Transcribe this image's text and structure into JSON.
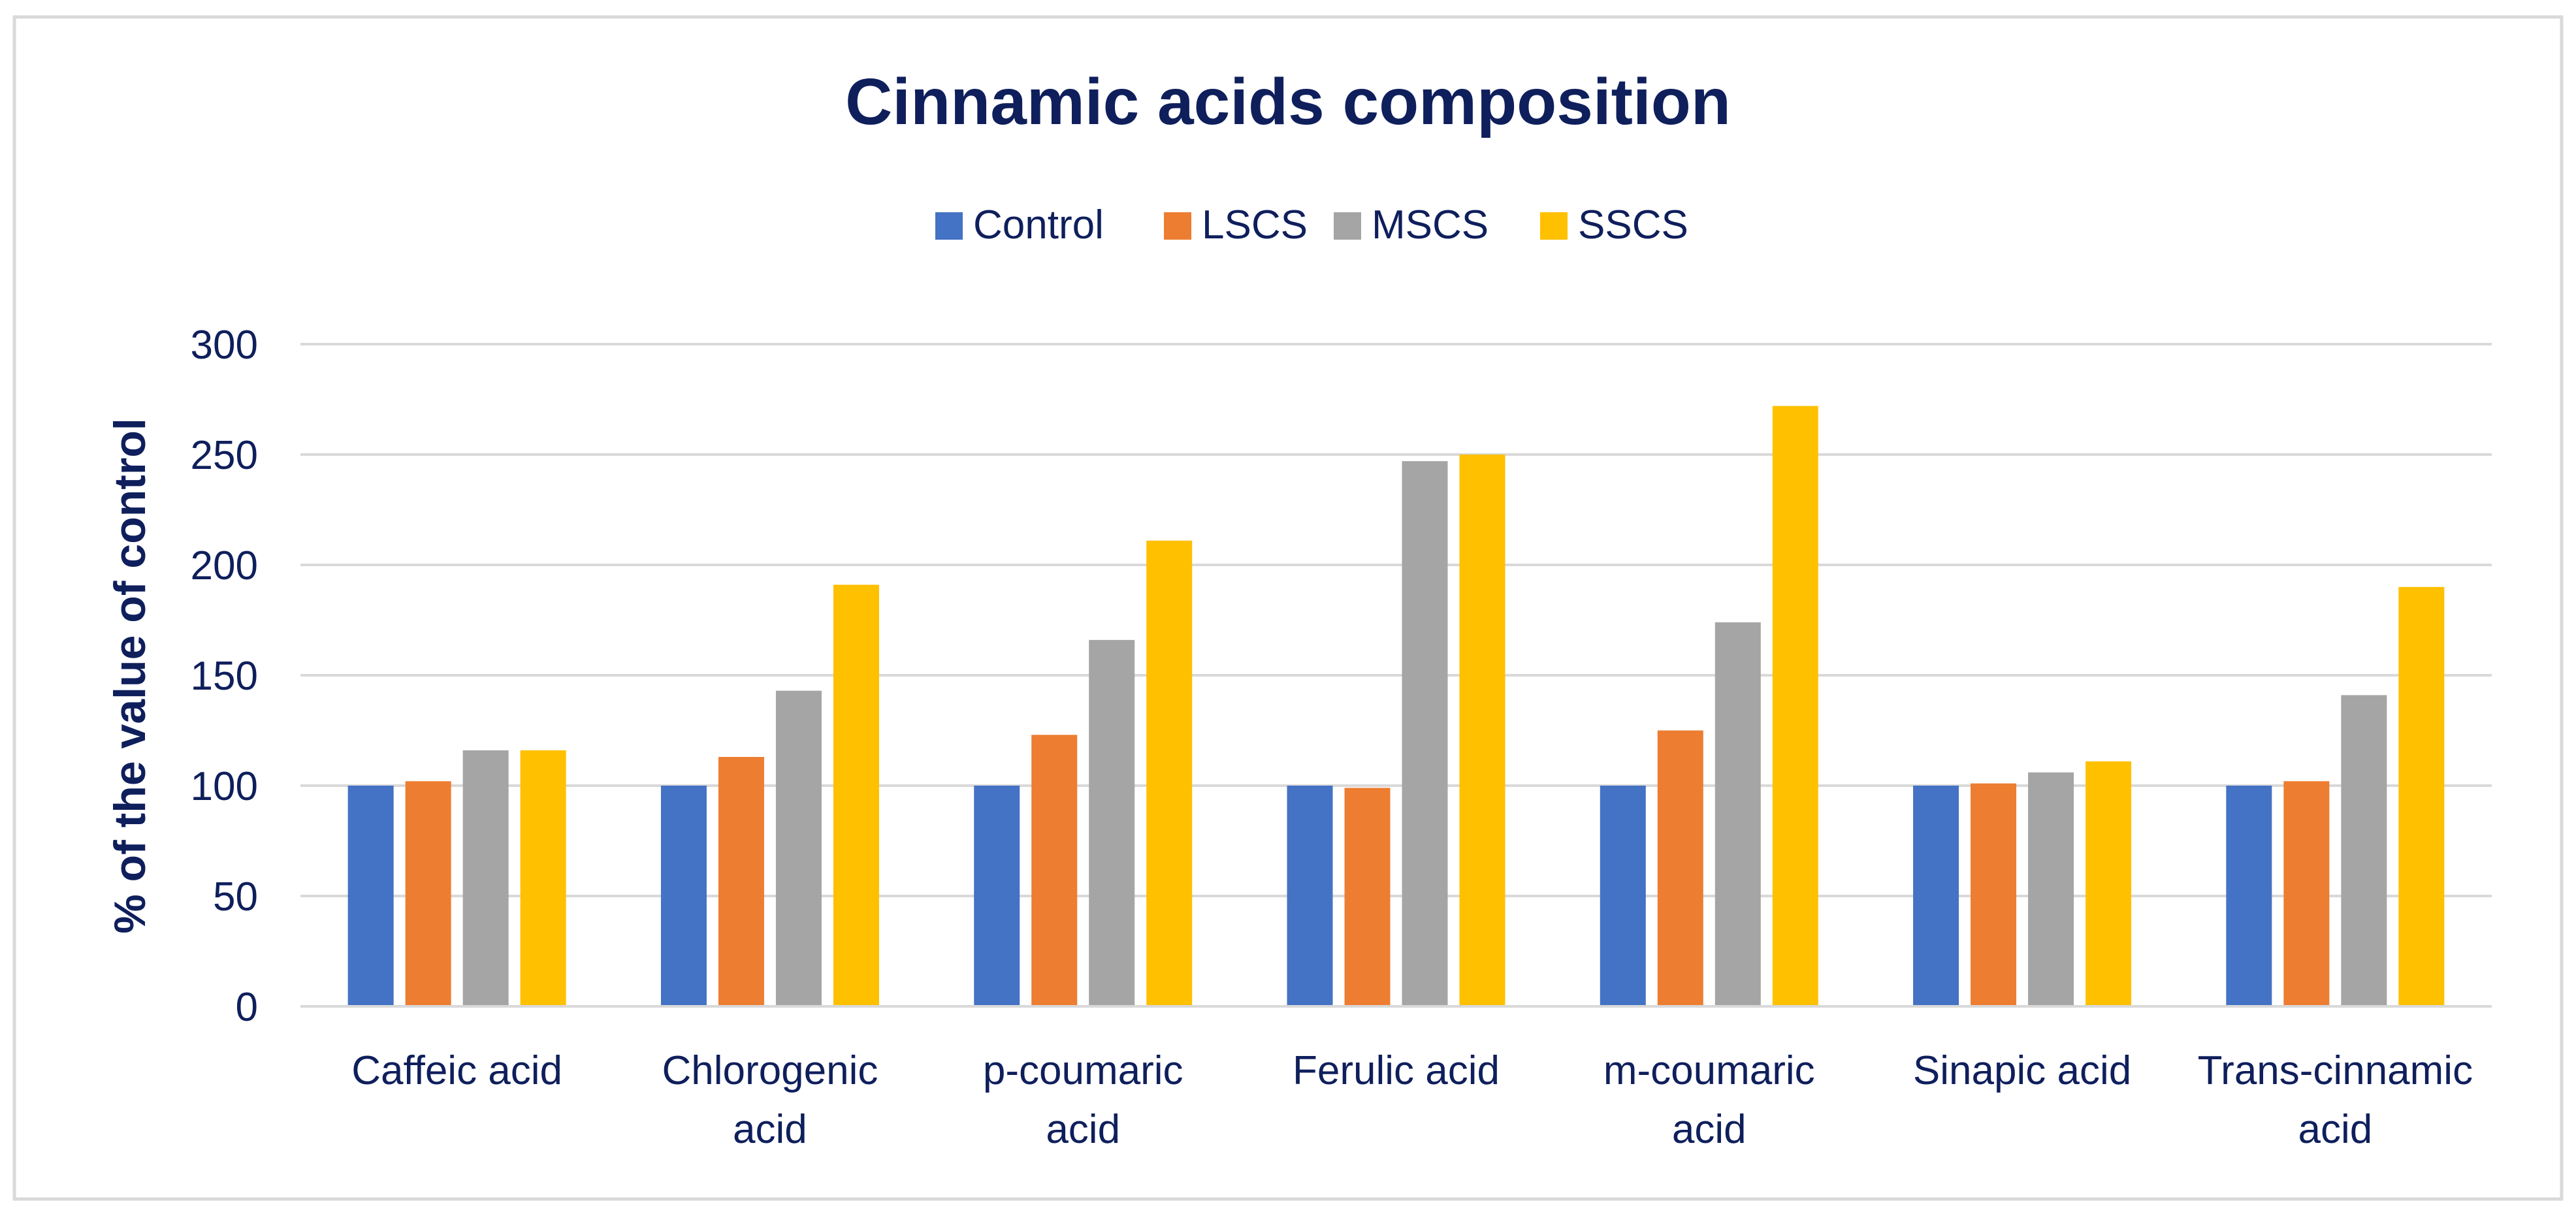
{
  "colors": {
    "title": "#0f1f5c",
    "text": "#0f1f5c",
    "grid": "#d9d9d9",
    "axis": "#d9d9d9",
    "frame": "#d9d9d9",
    "background": "#ffffff"
  },
  "chart_data": {
    "type": "bar",
    "title": "Cinnamic acids composition",
    "xlabel": "",
    "ylabel": "% of the value of control",
    "ylim": [
      0,
      300
    ],
    "yticks": [
      0,
      50,
      100,
      150,
      200,
      250,
      300
    ],
    "grid": true,
    "legend_position": "top-center",
    "categories": [
      [
        "Caffeic acid"
      ],
      [
        "Chlorogenic",
        "acid"
      ],
      [
        "p-coumaric",
        "acid"
      ],
      [
        "Ferulic acid"
      ],
      [
        "m-coumaric",
        "acid"
      ],
      [
        "Sinapic acid"
      ],
      [
        "Trans-cinnamic",
        "acid"
      ]
    ],
    "series": [
      {
        "name": "Control",
        "color": "#4472c4",
        "values": [
          100,
          100,
          100,
          100,
          100,
          100,
          100
        ]
      },
      {
        "name": "LSCS",
        "color": "#ed7d31",
        "values": [
          102,
          113,
          123,
          99,
          125,
          101,
          102
        ]
      },
      {
        "name": "MSCS",
        "color": "#a5a5a5",
        "values": [
          116,
          143,
          166,
          247,
          174,
          106,
          141
        ]
      },
      {
        "name": "SSCS",
        "color": "#ffc000",
        "values": [
          116,
          191,
          211,
          250,
          272,
          111,
          190
        ]
      }
    ]
  }
}
